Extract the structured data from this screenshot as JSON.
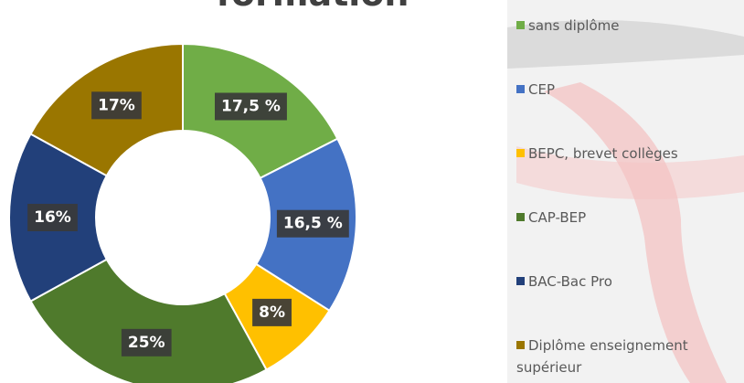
{
  "chart_data": {
    "type": "donut",
    "title": "formation",
    "categories": [
      "sans diplôme",
      "CEP",
      "BEPC, brevet collèges",
      "CAP-BEP",
      "BAC-Bac Pro",
      "Diplôme enseignement supérieur"
    ],
    "values": [
      17.5,
      16.5,
      8,
      25,
      16,
      17
    ],
    "value_labels": [
      "17,5 %",
      "16,5 %",
      "8%",
      "25%",
      "16%",
      "17%"
    ],
    "colors": [
      "#70ad47",
      "#4472c4",
      "#ffc000",
      "#4f7a2c",
      "#22407a",
      "#9a7600"
    ],
    "legend": "right"
  }
}
